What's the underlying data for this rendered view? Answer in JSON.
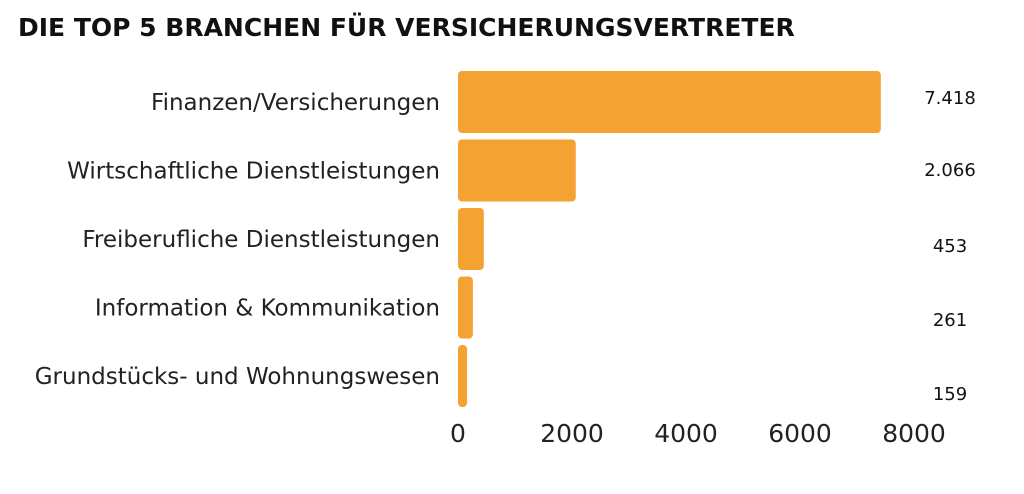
{
  "chart_data": {
    "type": "bar",
    "orientation": "horizontal",
    "title": "DIE TOP 5 BRANCHEN FÜR VERSICHERUNGSVERTRETER",
    "categories": [
      "Finanzen/Versicherungen",
      "Wirtschaftliche Dienstleistungen",
      "Freiberufliche Dienstleistungen",
      "Information & Kommunikation",
      "Grundstücks- und Wohnungswesen"
    ],
    "values": [
      7418,
      2066,
      453,
      261,
      159
    ],
    "value_labels": [
      "7.418",
      "2.066",
      "453",
      "261",
      "159"
    ],
    "xlim": [
      0,
      8000
    ],
    "xticks": [
      0,
      2000,
      4000,
      6000,
      8000
    ],
    "xtick_labels": [
      "0",
      "2000",
      "4000",
      "6000",
      "8000"
    ],
    "grid": false,
    "legend": "none",
    "bar_color": "#F4A232"
  }
}
